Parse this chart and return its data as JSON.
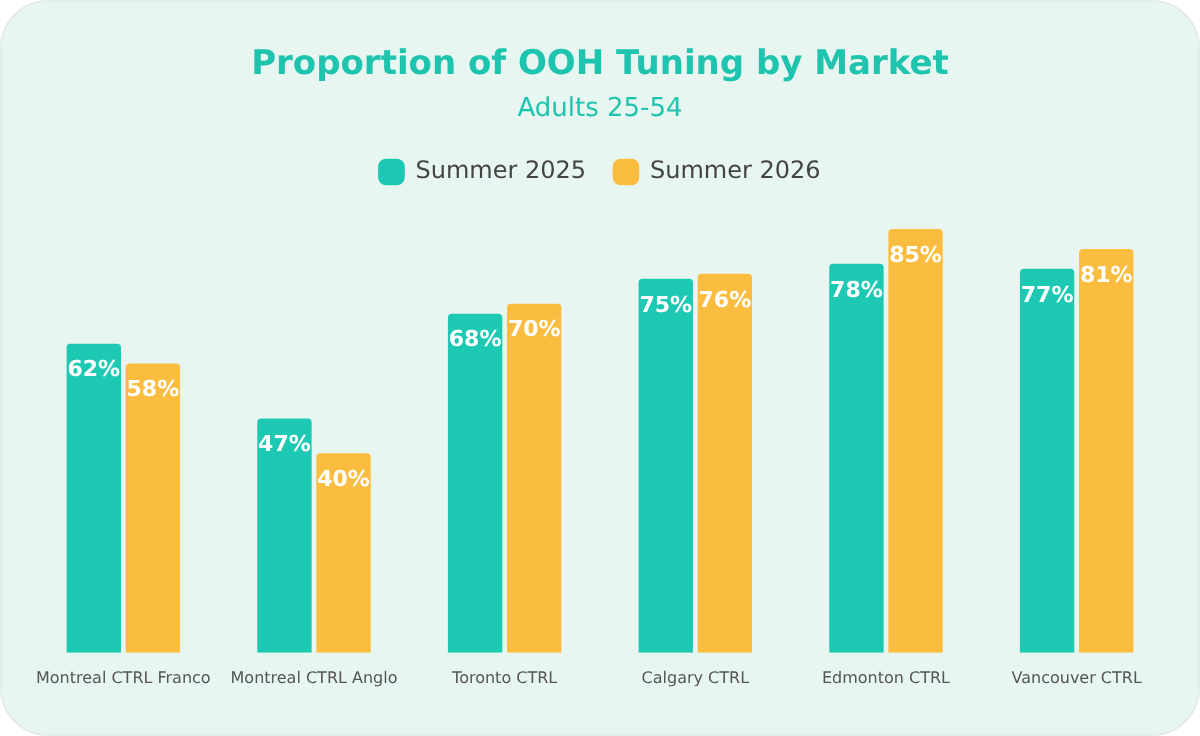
{
  "chart_data": {
    "type": "bar",
    "title": "Proportion of OOH Tuning by Market",
    "subtitle": "Adults 25-54",
    "categories": [
      "Montreal CTRL Franco",
      "Montreal CTRL Anglo",
      "Toronto CTRL",
      "Calgary CTRL",
      "Edmonton CTRL",
      "Vancouver CTRL"
    ],
    "series": [
      {
        "name": "Summer 2025",
        "color": "#1ec9b3",
        "values": [
          62,
          47,
          68,
          75,
          78,
          77
        ],
        "value_labels": [
          "62%",
          "47%",
          "68%",
          "75%",
          "78%",
          "77%"
        ]
      },
      {
        "name": "Summer 2026",
        "color": "#fbbd40",
        "values": [
          58,
          40,
          70,
          76,
          85,
          81
        ],
        "value_labels": [
          "58%",
          "40%",
          "70%",
          "76%",
          "85%",
          "81%"
        ]
      }
    ],
    "grid": false,
    "legend": "top"
  }
}
